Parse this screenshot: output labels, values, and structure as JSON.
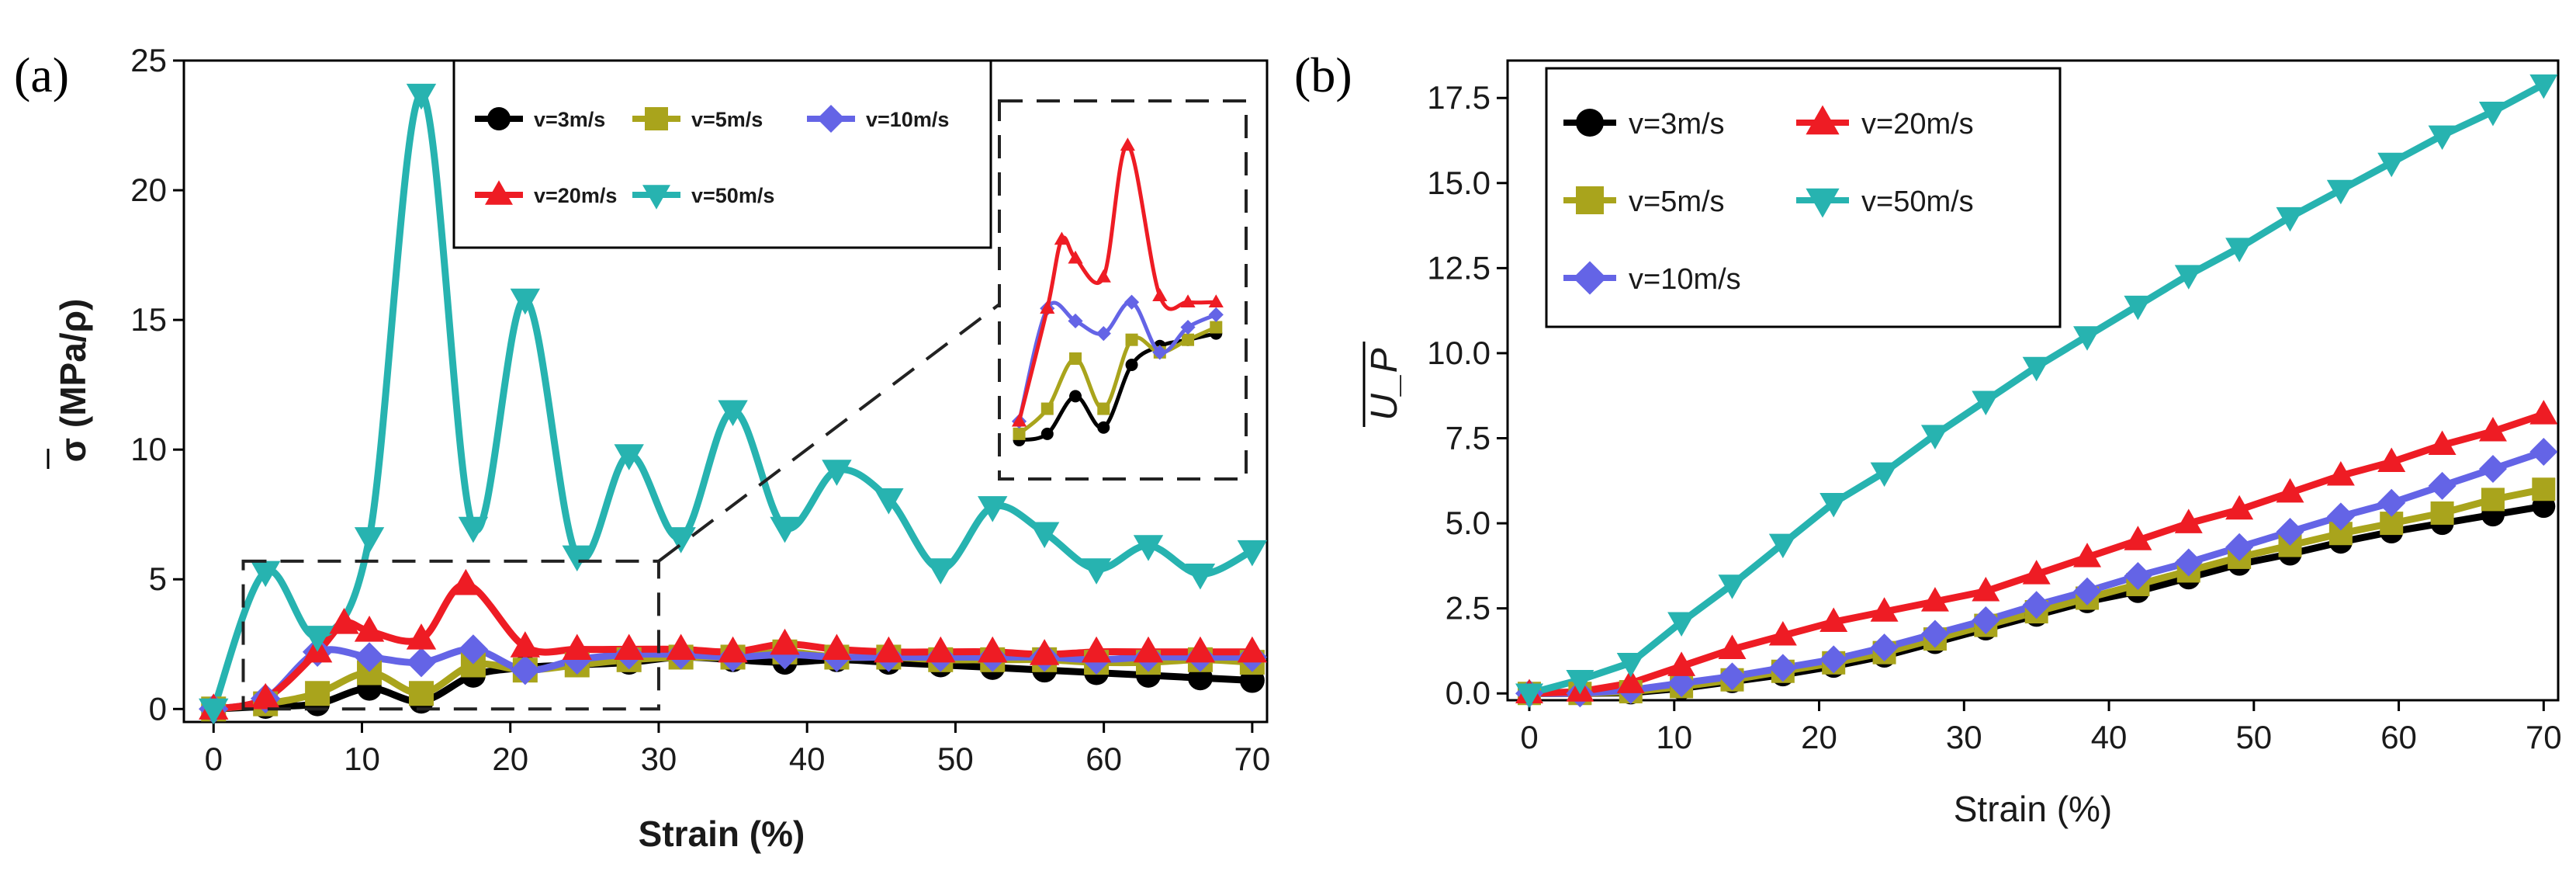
{
  "colors": {
    "v3": "#000000",
    "v5": "#a9a41c",
    "v10": "#6464e6",
    "v20": "#ee1c24",
    "v50": "#27b3b0"
  },
  "chart_data": [
    {
      "type": "line",
      "panel_label": "(a)",
      "xlabel": "Strain (%)",
      "ylabel": "σ (MPa/ρ)",
      "xlim": [
        -2,
        71
      ],
      "ylim": [
        -0.5,
        25
      ],
      "x_ticks": [
        0,
        10,
        20,
        30,
        40,
        50,
        60,
        70
      ],
      "y_ticks": [
        0,
        5,
        10,
        15,
        20,
        25
      ],
      "legend_layout": "top-center, two rows",
      "series": [
        {
          "name": "v=3m/s",
          "color_key": "v3",
          "marker": "circle",
          "x": [
            0,
            3.5,
            7,
            10.5,
            14,
            17.5,
            21,
            24.5,
            28,
            31.5,
            35,
            38.5,
            42,
            45.5,
            49,
            52.5,
            56,
            59.5,
            63,
            66.5,
            70
          ],
          "y": [
            0,
            0.1,
            0.2,
            0.8,
            0.3,
            1.3,
            1.6,
            1.7,
            1.8,
            2.0,
            1.9,
            1.8,
            1.9,
            1.8,
            1.7,
            1.6,
            1.5,
            1.4,
            1.3,
            1.2,
            1.1
          ]
        },
        {
          "name": "v=5m/s",
          "color_key": "v5",
          "marker": "square",
          "x": [
            0,
            3.5,
            7,
            10.5,
            14,
            17.5,
            21,
            24.5,
            28,
            31.5,
            35,
            38.5,
            42,
            45.5,
            49,
            52.5,
            56,
            59.5,
            63,
            66.5,
            70
          ],
          "y": [
            0,
            0.2,
            0.6,
            1.4,
            0.6,
            1.7,
            1.5,
            1.7,
            1.9,
            2.0,
            2.0,
            2.2,
            2.0,
            2.0,
            1.9,
            1.9,
            1.9,
            1.8,
            1.8,
            1.9,
            1.8
          ]
        },
        {
          "name": "v=10m/s",
          "color_key": "v10",
          "marker": "diamond",
          "x": [
            0,
            3.5,
            7,
            10.5,
            14,
            17.5,
            21,
            24.5,
            28,
            31.5,
            35,
            38.5,
            42,
            45.5,
            49,
            52.5,
            56,
            59.5,
            63,
            66.5,
            70
          ],
          "y": [
            0,
            0.4,
            2.2,
            2.0,
            1.8,
            2.3,
            1.5,
            1.9,
            2.1,
            2.1,
            2.0,
            2.1,
            2.0,
            2.0,
            2.0,
            2.0,
            2.0,
            1.9,
            2.0,
            2.0,
            2.0
          ]
        },
        {
          "name": "v=20m/s",
          "color_key": "v20",
          "marker": "triangle-up",
          "x": [
            0,
            3.5,
            7,
            8.8,
            10.5,
            14,
            17,
            21,
            24.5,
            28,
            31.5,
            35,
            38.5,
            42,
            45.5,
            49,
            52.5,
            56,
            59.5,
            63,
            66.5,
            70
          ],
          "y": [
            0,
            0.4,
            2.2,
            3.3,
            3.0,
            2.7,
            4.8,
            2.4,
            2.3,
            2.3,
            2.3,
            2.2,
            2.5,
            2.3,
            2.2,
            2.2,
            2.2,
            2.1,
            2.2,
            2.2,
            2.2,
            2.2
          ]
        },
        {
          "name": "v=50m/s",
          "color_key": "v50",
          "marker": "triangle-down",
          "x": [
            0,
            3.5,
            7,
            10.5,
            14,
            17.5,
            21,
            24.5,
            28,
            31.5,
            35,
            38.5,
            42,
            45.5,
            49,
            52.5,
            56,
            59.5,
            63,
            66.5,
            70
          ],
          "y": [
            0,
            5.3,
            2.8,
            6.6,
            23.7,
            7.0,
            15.8,
            5.9,
            9.8,
            6.6,
            11.5,
            7.0,
            9.2,
            8.1,
            5.4,
            7.8,
            6.8,
            5.4,
            6.3,
            5.2,
            6.1
          ]
        }
      ],
      "inset": "zoom of strain 2–30%, stress 0–5.5"
    },
    {
      "type": "line",
      "panel_label": "(b)",
      "xlabel": "Strain (%)",
      "ylabel": "U_P",
      "xlim": [
        -1.5,
        71
      ],
      "ylim": [
        -0.2,
        18.6
      ],
      "x_ticks": [
        0,
        10,
        20,
        30,
        40,
        50,
        60,
        70
      ],
      "y_ticks": [
        0.0,
        2.5,
        5.0,
        7.5,
        10.0,
        12.5,
        15.0,
        17.5
      ],
      "legend_layout": "top-left, two columns",
      "series": [
        {
          "name": "v=3m/s",
          "color_key": "v3",
          "marker": "circle",
          "x": [
            0,
            3.5,
            7,
            10.5,
            14,
            17.5,
            21,
            24.5,
            28,
            31.5,
            35,
            38.5,
            42,
            45.5,
            49,
            52.5,
            56,
            59.5,
            63,
            66.5,
            70
          ],
          "y": [
            0,
            0,
            0.02,
            0.15,
            0.35,
            0.55,
            0.8,
            1.1,
            1.5,
            1.9,
            2.3,
            2.7,
            3.0,
            3.4,
            3.8,
            4.1,
            4.45,
            4.75,
            5.0,
            5.25,
            5.5
          ]
        },
        {
          "name": "v=5m/s",
          "color_key": "v5",
          "marker": "square",
          "x": [
            0,
            3.5,
            7,
            10.5,
            14,
            17.5,
            21,
            24.5,
            28,
            31.5,
            35,
            38.5,
            42,
            45.5,
            49,
            52.5,
            56,
            59.5,
            63,
            66.5,
            70
          ],
          "y": [
            0,
            0,
            0.05,
            0.2,
            0.4,
            0.65,
            0.9,
            1.2,
            1.6,
            2.0,
            2.4,
            2.8,
            3.2,
            3.6,
            4.0,
            4.35,
            4.7,
            5.0,
            5.3,
            5.7,
            6.0
          ]
        },
        {
          "name": "v=10m/s",
          "color_key": "v10",
          "marker": "diamond",
          "x": [
            0,
            3.5,
            7,
            10.5,
            14,
            17.5,
            21,
            24.5,
            28,
            31.5,
            35,
            38.5,
            42,
            45.5,
            49,
            52.5,
            56,
            59.5,
            63,
            66.5,
            70
          ],
          "y": [
            0,
            0,
            0.1,
            0.3,
            0.5,
            0.75,
            1.0,
            1.35,
            1.75,
            2.15,
            2.6,
            3.0,
            3.45,
            3.85,
            4.3,
            4.75,
            5.2,
            5.6,
            6.1,
            6.6,
            7.1
          ]
        },
        {
          "name": "v=20m/s",
          "color_key": "v20",
          "marker": "triangle-up",
          "x": [
            0,
            3.5,
            7,
            10.5,
            14,
            17.5,
            21,
            24.5,
            28,
            31.5,
            35,
            38.5,
            42,
            45.5,
            49,
            52.5,
            56,
            59.5,
            63,
            66.5,
            70
          ],
          "y": [
            0,
            0.05,
            0.3,
            0.8,
            1.3,
            1.7,
            2.1,
            2.4,
            2.7,
            3.0,
            3.5,
            4.0,
            4.5,
            5.0,
            5.4,
            5.9,
            6.4,
            6.8,
            7.3,
            7.7,
            8.2
          ]
        },
        {
          "name": "v=50m/s",
          "color_key": "v50",
          "marker": "triangle-down",
          "x": [
            0,
            3.5,
            7,
            10.5,
            14,
            17.5,
            21,
            24.5,
            28,
            31.5,
            35,
            38.5,
            42,
            45.5,
            49,
            52.5,
            56,
            59.5,
            63,
            66.5,
            70
          ],
          "y": [
            0,
            0.4,
            0.9,
            2.1,
            3.2,
            4.4,
            5.6,
            6.5,
            7.6,
            8.6,
            9.6,
            10.5,
            11.4,
            12.3,
            13.1,
            14.0,
            14.8,
            15.6,
            16.4,
            17.1,
            17.9
          ]
        }
      ]
    }
  ]
}
